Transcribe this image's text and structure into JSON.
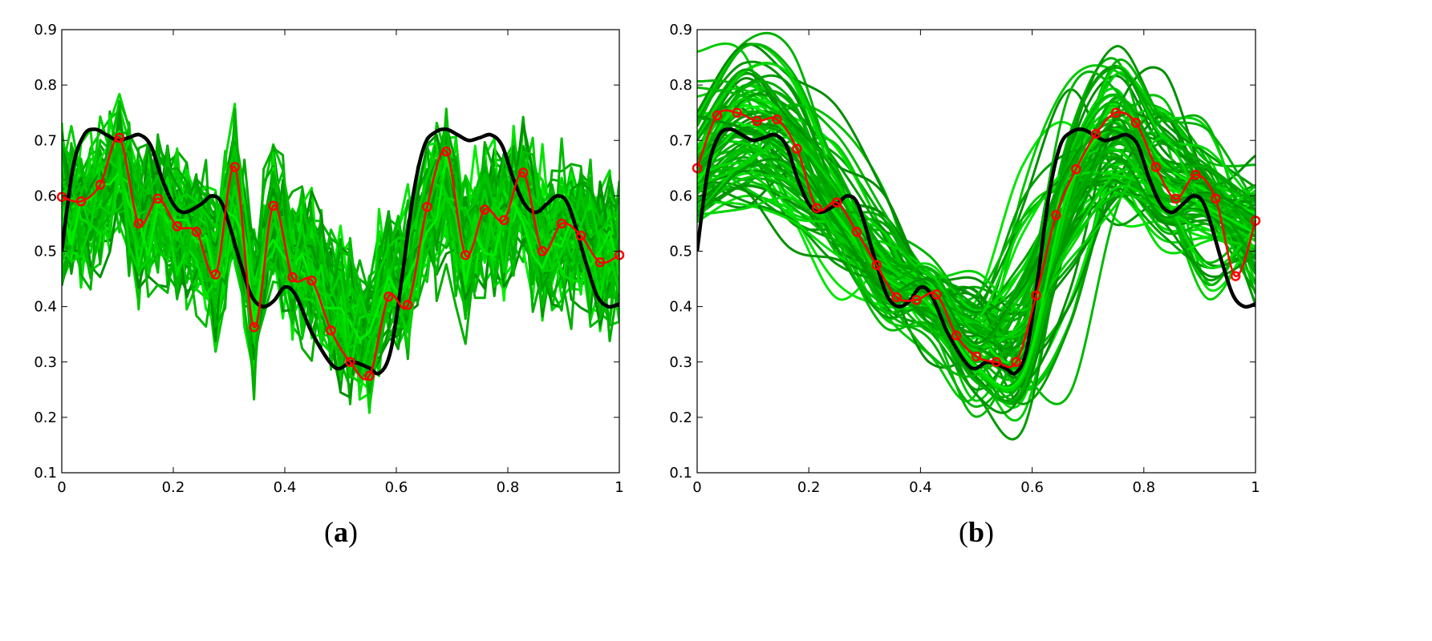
{
  "chart_data": [
    {
      "type": "line",
      "panel_label": "a",
      "caption_open": "(",
      "caption_close": ")",
      "xlim": [
        0,
        1
      ],
      "ylim": [
        0.1,
        0.9
      ],
      "xticks": [
        "0",
        "0.2",
        "0.4",
        "0.6",
        "0.8",
        "1"
      ],
      "yticks": [
        "0.1",
        "0.2",
        "0.3",
        "0.4",
        "0.5",
        "0.6",
        "0.7",
        "0.8",
        "0.9"
      ],
      "grid": false,
      "true_function": {
        "color": "#000000",
        "x": [
          0,
          0.02,
          0.04,
          0.06,
          0.08,
          0.1,
          0.12,
          0.14,
          0.16,
          0.18,
          0.2,
          0.22,
          0.25,
          0.27,
          0.29,
          0.32,
          0.34,
          0.36,
          0.38,
          0.4,
          0.42,
          0.45,
          0.49,
          0.52,
          0.55,
          0.57,
          0.59,
          0.61,
          0.63,
          0.65,
          0.67,
          0.69,
          0.71,
          0.73,
          0.75,
          0.77,
          0.79,
          0.81,
          0.83,
          0.85,
          0.87,
          0.89,
          0.91,
          0.94,
          0.96,
          0.98,
          1
        ],
        "y": [
          0.5,
          0.65,
          0.71,
          0.72,
          0.71,
          0.7,
          0.705,
          0.71,
          0.69,
          0.63,
          0.585,
          0.57,
          0.585,
          0.6,
          0.58,
          0.48,
          0.42,
          0.4,
          0.41,
          0.435,
          0.42,
          0.35,
          0.29,
          0.3,
          0.29,
          0.28,
          0.32,
          0.45,
          0.6,
          0.69,
          0.715,
          0.72,
          0.71,
          0.7,
          0.705,
          0.71,
          0.69,
          0.63,
          0.585,
          0.57,
          0.585,
          0.6,
          0.58,
          0.48,
          0.42,
          0.4,
          0.405
        ]
      },
      "estimate": {
        "color": "#ff0000",
        "marker": "circle",
        "y": [
          0.598,
          0.59,
          0.62,
          0.705,
          0.55,
          0.595,
          0.545,
          0.535,
          0.458,
          0.652,
          0.363,
          0.582,
          0.453,
          0.447,
          0.357,
          0.3,
          0.275,
          0.418,
          0.403,
          0.58,
          0.68,
          0.493,
          0.575,
          0.556,
          0.642,
          0.5,
          0.55,
          0.528,
          0.48,
          0.493
        ]
      },
      "samples": {
        "count": 90,
        "spread": 0.09,
        "style": "piecewise",
        "color_dark": "#008a00",
        "color_light": "#00ee00"
      }
    },
    {
      "type": "line",
      "panel_label": "b",
      "caption_open": "(",
      "caption_close": ")",
      "xlim": [
        0,
        1
      ],
      "ylim": [
        0.1,
        0.9
      ],
      "xticks": [
        "0",
        "0.2",
        "0.4",
        "0.6",
        "0.8",
        "1"
      ],
      "yticks": [
        "0.1",
        "0.2",
        "0.3",
        "0.4",
        "0.5",
        "0.6",
        "0.7",
        "0.8",
        "0.9"
      ],
      "grid": false,
      "true_function": {
        "color": "#000000",
        "x": [
          0,
          0.02,
          0.04,
          0.06,
          0.08,
          0.1,
          0.12,
          0.14,
          0.16,
          0.18,
          0.2,
          0.22,
          0.25,
          0.27,
          0.29,
          0.32,
          0.34,
          0.36,
          0.38,
          0.4,
          0.42,
          0.45,
          0.49,
          0.52,
          0.55,
          0.57,
          0.59,
          0.61,
          0.63,
          0.65,
          0.67,
          0.69,
          0.71,
          0.73,
          0.75,
          0.77,
          0.79,
          0.81,
          0.83,
          0.85,
          0.87,
          0.89,
          0.91,
          0.94,
          0.96,
          0.98,
          1
        ],
        "y": [
          0.5,
          0.65,
          0.71,
          0.72,
          0.71,
          0.7,
          0.705,
          0.71,
          0.69,
          0.63,
          0.585,
          0.57,
          0.585,
          0.6,
          0.58,
          0.48,
          0.42,
          0.4,
          0.41,
          0.435,
          0.42,
          0.35,
          0.29,
          0.3,
          0.29,
          0.28,
          0.32,
          0.45,
          0.6,
          0.69,
          0.715,
          0.72,
          0.71,
          0.7,
          0.705,
          0.71,
          0.69,
          0.63,
          0.585,
          0.57,
          0.585,
          0.6,
          0.58,
          0.48,
          0.42,
          0.4,
          0.405
        ]
      },
      "estimate": {
        "color": "#ff0000",
        "marker": "circle",
        "y": [
          0.65,
          0.745,
          0.75,
          0.735,
          0.738,
          0.685,
          0.578,
          0.588,
          0.535,
          0.475,
          0.417,
          0.412,
          0.422,
          0.348,
          0.31,
          0.3,
          0.3,
          0.42,
          0.565,
          0.648,
          0.712,
          0.75,
          0.732,
          0.652,
          0.595,
          0.638,
          0.595,
          0.455,
          0.555
        ]
      },
      "samples": {
        "count": 90,
        "spread": 0.07,
        "style": "smooth",
        "color_dark": "#008a00",
        "color_light": "#00ee00"
      }
    }
  ]
}
